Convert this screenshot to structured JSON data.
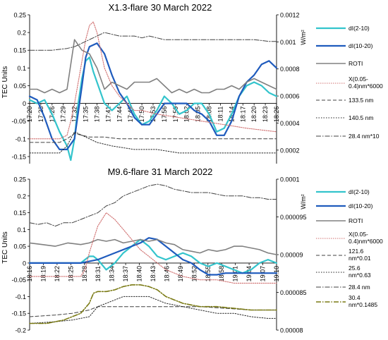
{
  "chart_data": [
    {
      "type": "line",
      "title": "X1.3-flare 30 March 2022",
      "ylabel_left": "TEC Units",
      "ylabel_right": "W/m²",
      "ylim": [
        -0.17,
        0.25
      ],
      "yticks": [
        "0.25",
        "0.2",
        "0.15",
        "0.1",
        "0.05",
        "0",
        "-0.05",
        "-0.1",
        "-0.15"
      ],
      "yticks_values": [
        0.25,
        0.2,
        0.15,
        0.1,
        0.05,
        0,
        -0.05,
        -0.1,
        -0.15
      ],
      "y2lim": [
        0.0001,
        0.0012
      ],
      "y2ticks": [
        "0.0012",
        "0.001",
        "0.0008",
        "0.0006",
        "0.0004",
        "0.0002"
      ],
      "y2ticks_values": [
        0.0012,
        0.001,
        0.0008,
        0.0006,
        0.0004,
        0.0002
      ],
      "xlim": [
        0,
        66
      ],
      "xticks": [
        "17:20",
        "17:23",
        "17:26",
        "17:29",
        "17:32",
        "17:35",
        "17:38",
        "17:41",
        "17:44",
        "17:47",
        "17:50",
        "17:53",
        "17:56",
        "17:59",
        "18:02",
        "18:05",
        "18:08",
        "18:11",
        "18:14",
        "18:17",
        "18:20",
        "18:23",
        "18:26"
      ],
      "series": [
        {
          "name": "dI(2-10)",
          "color": "#33c4cc",
          "width": 2.2,
          "dash": "",
          "axis": "left",
          "x": [
            0,
            2,
            4,
            6,
            8,
            10,
            11,
            12,
            13,
            14,
            15,
            16,
            17,
            18,
            19,
            20,
            22,
            24,
            26,
            28,
            30,
            32,
            34,
            36,
            38,
            40,
            42,
            44,
            46,
            48,
            50,
            52,
            54,
            56,
            58,
            60,
            62,
            64,
            66
          ],
          "y": [
            0.01,
            0.0,
            0.01,
            -0.03,
            -0.08,
            -0.12,
            -0.16,
            -0.1,
            0.0,
            0.07,
            0.12,
            0.13,
            0.09,
            0.06,
            0.03,
            0.0,
            -0.02,
            0.0,
            0.02,
            -0.03,
            -0.06,
            -0.05,
            -0.02,
            0.02,
            0.0,
            -0.03,
            -0.02,
            0.0,
            0.0,
            -0.03,
            -0.08,
            -0.07,
            -0.03,
            0.02,
            0.05,
            0.06,
            0.05,
            0.03,
            0.02
          ]
        },
        {
          "name": "dI(10-20)",
          "color": "#1f5bbd",
          "width": 2.2,
          "dash": "",
          "axis": "left",
          "x": [
            0,
            2,
            4,
            6,
            8,
            10,
            12,
            14,
            15,
            16,
            18,
            20,
            22,
            24,
            26,
            28,
            30,
            32,
            34,
            36,
            38,
            40,
            42,
            44,
            46,
            48,
            50,
            52,
            54,
            56,
            58,
            60,
            62,
            64,
            66
          ],
          "y": [
            0.02,
            0.01,
            -0.04,
            -0.1,
            -0.13,
            -0.13,
            -0.1,
            0.05,
            0.13,
            0.16,
            0.17,
            0.14,
            0.08,
            0.03,
            0.0,
            -0.04,
            -0.06,
            -0.06,
            -0.03,
            0.0,
            0.0,
            0.0,
            0.0,
            -0.02,
            -0.03,
            -0.05,
            -0.09,
            -0.09,
            -0.05,
            0.02,
            0.06,
            0.08,
            0.11,
            0.12,
            0.1
          ]
        },
        {
          "name": "ROTI",
          "color": "#808080",
          "width": 1.6,
          "dash": "",
          "axis": "left",
          "x": [
            0,
            2,
            4,
            6,
            8,
            10,
            12,
            14,
            16,
            18,
            20,
            22,
            24,
            26,
            28,
            30,
            32,
            34,
            36,
            38,
            40,
            42,
            44,
            46,
            48,
            50,
            52,
            54,
            56,
            58,
            60,
            62,
            64,
            66
          ],
          "y": [
            0.04,
            0.04,
            0.03,
            0.04,
            0.03,
            0.04,
            0.18,
            0.15,
            0.14,
            0.1,
            0.04,
            0.06,
            0.05,
            0.04,
            0.06,
            0.06,
            0.06,
            0.07,
            0.05,
            0.03,
            0.04,
            0.03,
            0.04,
            0.03,
            0.03,
            0.04,
            0.04,
            0.05,
            0.04,
            0.06,
            0.07,
            0.06,
            0.05,
            0.04
          ]
        },
        {
          "name": "X(0.05-0.4)nm*6000",
          "color": "#d07070",
          "width": 1.1,
          "dash": "1.5,1.5",
          "axis": "left",
          "x": [
            0,
            4,
            8,
            10,
            11,
            12,
            13,
            14,
            15,
            16,
            17,
            18,
            19,
            20,
            22,
            24,
            26,
            28,
            30,
            34,
            40,
            46,
            52,
            58,
            66
          ],
          "y": [
            -0.1,
            -0.1,
            -0.1,
            -0.09,
            -0.05,
            0.0,
            0.06,
            0.12,
            0.18,
            0.22,
            0.23,
            0.2,
            0.15,
            0.1,
            0.05,
            0.02,
            0.0,
            -0.02,
            -0.02,
            -0.03,
            -0.04,
            -0.05,
            -0.06,
            -0.07,
            -0.08
          ]
        },
        {
          "name": "133.5 nm",
          "color": "#404040",
          "width": 1.0,
          "dash": "5,3",
          "axis": "left",
          "x": [
            0,
            8,
            10,
            12,
            14,
            16,
            18,
            20,
            24,
            30,
            36,
            42,
            48,
            54,
            60,
            66
          ],
          "y": [
            -0.11,
            -0.11,
            -0.1,
            -0.085,
            -0.09,
            -0.095,
            -0.095,
            -0.095,
            -0.1,
            -0.1,
            -0.1,
            -0.1,
            -0.1,
            -0.1,
            -0.1,
            -0.1
          ]
        },
        {
          "name": "140.5 nm",
          "color": "#202020",
          "width": 1.0,
          "dash": "1.5,2",
          "axis": "left",
          "x": [
            0,
            8,
            10,
            12,
            14,
            16,
            18,
            22,
            28,
            34,
            40,
            48,
            56,
            66
          ],
          "y": [
            -0.14,
            -0.14,
            -0.12,
            -0.08,
            -0.09,
            -0.1,
            -0.11,
            -0.12,
            -0.13,
            -0.13,
            -0.14,
            -0.14,
            -0.14,
            -0.14
          ]
        },
        {
          "name": "28.4 nm*10",
          "color": "#404040",
          "width": 1.0,
          "dash": "7,2,1.5,2",
          "axis": "left",
          "x": [
            0,
            6,
            10,
            12,
            14,
            16,
            18,
            20,
            22,
            24,
            26,
            28,
            30,
            32,
            36,
            40,
            44,
            48,
            52,
            56,
            60,
            64,
            66
          ],
          "y": [
            0.15,
            0.15,
            0.155,
            0.16,
            0.17,
            0.18,
            0.19,
            0.2,
            0.195,
            0.19,
            0.19,
            0.19,
            0.185,
            0.19,
            0.18,
            0.18,
            0.18,
            0.18,
            0.18,
            0.18,
            0.18,
            0.175,
            0.175
          ]
        }
      ]
    },
    {
      "type": "line",
      "title": "M9.6-flare 31 March 2022",
      "ylabel_left": "TEC Units",
      "ylabel_right": "W/m²",
      "ylim": [
        -0.2,
        0.25
      ],
      "yticks": [
        "0.25",
        "0.2",
        "0.15",
        "0.1",
        "0.05",
        "0",
        "-0.05",
        "-0.1",
        "-0.15",
        "-0.2"
      ],
      "yticks_values": [
        0.25,
        0.2,
        0.15,
        0.1,
        0.05,
        0,
        -0.05,
        -0.1,
        -0.15,
        -0.2
      ],
      "y2lim": [
        8e-05,
        0.0001
      ],
      "y2ticks": [
        "0.0001",
        "0.000095",
        "0.00009",
        "0.000085",
        "0.00008"
      ],
      "y2ticks_values": [
        0.0001,
        9.5e-05,
        9e-05,
        8.5e-05,
        8e-05
      ],
      "xlim": [
        0,
        58
      ],
      "xticks": [
        "18:16",
        "18:19",
        "18:22",
        "18:25",
        "18:28",
        "18:31",
        "18:34",
        "18:37",
        "18:40",
        "18:43",
        "18:46",
        "18:49",
        "18:52",
        "18:55",
        "18:58",
        "19:01",
        "19:04",
        "19:07",
        "19:10"
      ],
      "series": [
        {
          "name": "dI(2-10)",
          "color": "#33c4cc",
          "width": 2.2,
          "dash": "",
          "axis": "left",
          "x": [
            0,
            3,
            6,
            9,
            12,
            14,
            15,
            16,
            18,
            20,
            22,
            24,
            26,
            28,
            30,
            32,
            34,
            36,
            38,
            40,
            42,
            44,
            46,
            48,
            50,
            52,
            54,
            56,
            58
          ],
          "y": [
            0.0,
            0.0,
            0.0,
            0.0,
            0.0,
            0.02,
            0.02,
            0.01,
            -0.02,
            0.0,
            0.03,
            0.05,
            0.07,
            0.05,
            0.02,
            0.01,
            0.02,
            0.03,
            0.02,
            0.0,
            -0.01,
            0.0,
            -0.01,
            -0.02,
            -0.03,
            -0.02,
            0.0,
            0.01,
            0.0
          ]
        },
        {
          "name": "dI(10-20)",
          "color": "#1f5bbd",
          "width": 2.2,
          "dash": "",
          "axis": "left",
          "x": [
            0,
            3,
            6,
            9,
            12,
            14,
            16,
            18,
            20,
            22,
            24,
            26,
            28,
            30,
            32,
            34,
            36,
            38,
            40,
            42,
            44,
            46,
            48,
            50,
            52,
            54,
            56,
            58
          ],
          "y": [
            0.0,
            0.0,
            0.0,
            0.0,
            0.0,
            0.005,
            0.01,
            0.02,
            0.03,
            0.04,
            0.05,
            0.06,
            0.075,
            0.07,
            0.05,
            0.03,
            0.01,
            0.0,
            -0.02,
            -0.035,
            -0.035,
            -0.03,
            -0.03,
            -0.03,
            -0.03,
            -0.03,
            -0.03,
            -0.03
          ]
        },
        {
          "name": "ROTI",
          "color": "#808080",
          "width": 1.6,
          "dash": "",
          "axis": "left",
          "x": [
            0,
            3,
            6,
            9,
            12,
            14,
            16,
            18,
            20,
            22,
            24,
            26,
            28,
            30,
            32,
            34,
            36,
            38,
            40,
            42,
            44,
            46,
            48,
            50,
            52,
            54,
            56,
            58
          ],
          "y": [
            0.06,
            0.055,
            0.05,
            0.06,
            0.055,
            0.06,
            0.07,
            0.065,
            0.07,
            0.06,
            0.065,
            0.07,
            0.065,
            0.07,
            0.06,
            0.055,
            0.04,
            0.035,
            0.03,
            0.04,
            0.035,
            0.04,
            0.05,
            0.05,
            0.045,
            0.04,
            0.03,
            0.025
          ]
        },
        {
          "name": "X(0.05-0.4)nm*6000",
          "color": "#d07070",
          "width": 1.1,
          "dash": "1.5,1.5",
          "axis": "left",
          "x": [
            0,
            4,
            8,
            12,
            13,
            14,
            15,
            16,
            18,
            20,
            22,
            24,
            26,
            28,
            30,
            32,
            36,
            40,
            44,
            48,
            52,
            56,
            58
          ],
          "y": [
            -0.04,
            -0.04,
            -0.04,
            -0.04,
            -0.02,
            0.03,
            0.07,
            0.11,
            0.15,
            0.13,
            0.1,
            0.07,
            0.04,
            0.02,
            0.0,
            -0.02,
            -0.04,
            -0.05,
            -0.05,
            -0.06,
            -0.06,
            -0.06,
            -0.06
          ]
        },
        {
          "name": "121.6 nm*0.01",
          "color": "#404040",
          "width": 1.0,
          "dash": "5,3",
          "axis": "left",
          "x": [
            0,
            6,
            10,
            14,
            16,
            18,
            20,
            24,
            28,
            32,
            36,
            40,
            46,
            52,
            58
          ],
          "y": [
            -0.16,
            -0.155,
            -0.15,
            -0.14,
            -0.13,
            -0.13,
            -0.13,
            -0.13,
            -0.13,
            -0.13,
            -0.13,
            -0.13,
            -0.135,
            -0.14,
            -0.14
          ]
        },
        {
          "name": "25.6 nm*0.63",
          "color": "#202020",
          "width": 1.0,
          "dash": "1.5,2",
          "axis": "left",
          "x": [
            0,
            6,
            10,
            14,
            16,
            18,
            20,
            22,
            24,
            26,
            28,
            30,
            32,
            36,
            40,
            44,
            48,
            52,
            56,
            58
          ],
          "y": [
            -0.18,
            -0.175,
            -0.17,
            -0.16,
            -0.13,
            -0.12,
            -0.11,
            -0.1,
            -0.1,
            -0.1,
            -0.1,
            -0.11,
            -0.12,
            -0.13,
            -0.14,
            -0.15,
            -0.15,
            -0.16,
            -0.165,
            -0.165
          ]
        },
        {
          "name": "28.4 nm",
          "color": "#404040",
          "width": 1.0,
          "dash": "7,2,1.5,2",
          "axis": "left",
          "x": [
            0,
            2,
            4,
            6,
            8,
            10,
            12,
            14,
            16,
            18,
            20,
            22,
            24,
            26,
            28,
            30,
            32,
            34,
            36,
            38,
            40,
            42,
            44,
            46,
            48,
            50,
            52,
            54,
            56,
            58
          ],
          "y": [
            0.12,
            0.115,
            0.12,
            0.11,
            0.12,
            0.12,
            0.13,
            0.14,
            0.15,
            0.17,
            0.18,
            0.2,
            0.21,
            0.22,
            0.23,
            0.235,
            0.23,
            0.22,
            0.215,
            0.21,
            0.21,
            0.21,
            0.205,
            0.2,
            0.2,
            0.2,
            0.195,
            0.195,
            0.19,
            0.19
          ]
        },
        {
          "name": "30.4 nm*0.1485",
          "color": "#7a7a14",
          "width": 1.6,
          "dash": "7,2,1.5,2",
          "axis": "left",
          "x": [
            0,
            4,
            8,
            12,
            14,
            15,
            16,
            18,
            20,
            22,
            24,
            26,
            28,
            30,
            32,
            34,
            36,
            40,
            44,
            48,
            52,
            56,
            58
          ],
          "y": [
            -0.18,
            -0.18,
            -0.17,
            -0.15,
            -0.12,
            -0.09,
            -0.085,
            -0.085,
            -0.08,
            -0.07,
            -0.065,
            -0.065,
            -0.07,
            -0.08,
            -0.1,
            -0.11,
            -0.12,
            -0.13,
            -0.13,
            -0.135,
            -0.14,
            -0.14,
            -0.14
          ]
        }
      ]
    }
  ]
}
